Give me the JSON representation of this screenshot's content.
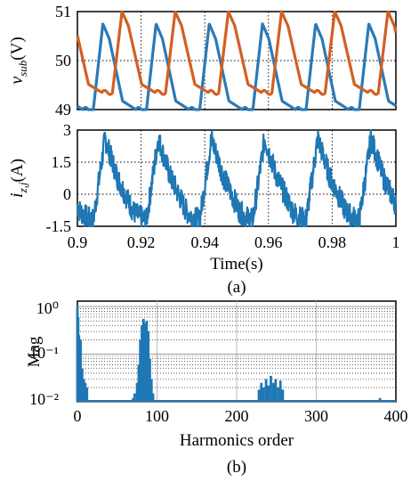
{
  "chart_data": [
    {
      "type": "line",
      "panel": "top",
      "ylabel_main": "v",
      "ylabel_sub": "sub",
      "ylabel_unit": "(V)",
      "xlim": [
        0.9,
        1.0
      ],
      "ylim": [
        49,
        51
      ],
      "yticks": [
        "51",
        "50",
        "49"
      ],
      "grid": true,
      "series": [
        {
          "color": "#2a7ab8",
          "period": 0.0167,
          "phase": 0.905,
          "min": 49,
          "max": 50.75
        },
        {
          "color": "#d35f22",
          "period": 0.0167,
          "phase": 0.911,
          "min": 49.35,
          "max": 51
        }
      ]
    },
    {
      "type": "line",
      "panel": "middle",
      "ylabel_main": "i",
      "ylabel_sub": "z,j",
      "ylabel_unit": "(A)",
      "xlim": [
        0.9,
        1.0
      ],
      "ylim": [
        -1.5,
        3
      ],
      "yticks": [
        "3",
        "1.5",
        "0",
        "-1.5"
      ],
      "xticks": [
        "0.9",
        "0.92",
        "0.94",
        "0.96",
        "0.98",
        "1"
      ],
      "xlabel": "Time(s)",
      "grid": true,
      "series": [
        {
          "color": "#1f77b4",
          "period": 0.0167,
          "min": -1.5,
          "max": 2.7
        }
      ]
    },
    {
      "type": "bar",
      "panel": "bottom",
      "xlabel": "Harmonics order",
      "ylabel": "Mag",
      "xlim": [
        0,
        400
      ],
      "xticks": [
        "0",
        "100",
        "200",
        "300",
        "400"
      ],
      "yscale": "log",
      "ylim": [
        0.01,
        1.3
      ],
      "yticks": [
        "10⁰",
        "10⁻¹",
        "10⁻²"
      ],
      "grid": true,
      "color": "#1f77b4",
      "bars": [
        {
          "x": 0,
          "y": 1.0
        },
        {
          "x": 1,
          "y": 0.6
        },
        {
          "x": 2,
          "y": 0.25
        },
        {
          "x": 3,
          "y": 0.12
        },
        {
          "x": 4,
          "y": 0.2
        },
        {
          "x": 5,
          "y": 0.035
        },
        {
          "x": 6,
          "y": 0.05
        },
        {
          "x": 7,
          "y": 0.018
        },
        {
          "x": 8,
          "y": 0.03
        },
        {
          "x": 9,
          "y": 0.015
        },
        {
          "x": 10,
          "y": 0.025
        },
        {
          "x": 11,
          "y": 0.012
        },
        {
          "x": 12,
          "y": 0.02
        },
        {
          "x": 70,
          "y": 0.012
        },
        {
          "x": 72,
          "y": 0.015
        },
        {
          "x": 75,
          "y": 0.025
        },
        {
          "x": 77,
          "y": 0.06
        },
        {
          "x": 79,
          "y": 0.2
        },
        {
          "x": 81,
          "y": 0.4
        },
        {
          "x": 83,
          "y": 0.55
        },
        {
          "x": 85,
          "y": 0.45
        },
        {
          "x": 87,
          "y": 0.5
        },
        {
          "x": 89,
          "y": 0.3
        },
        {
          "x": 91,
          "y": 0.08
        },
        {
          "x": 93,
          "y": 0.03
        },
        {
          "x": 95,
          "y": 0.015
        },
        {
          "x": 228,
          "y": 0.018
        },
        {
          "x": 231,
          "y": 0.025
        },
        {
          "x": 234,
          "y": 0.02
        },
        {
          "x": 237,
          "y": 0.03
        },
        {
          "x": 240,
          "y": 0.022
        },
        {
          "x": 243,
          "y": 0.035
        },
        {
          "x": 246,
          "y": 0.025
        },
        {
          "x": 249,
          "y": 0.03
        },
        {
          "x": 252,
          "y": 0.02
        },
        {
          "x": 255,
          "y": 0.028
        },
        {
          "x": 258,
          "y": 0.018
        },
        {
          "x": 380,
          "y": 0.012
        }
      ]
    }
  ],
  "captions": {
    "a": "(a)",
    "b": "(b)"
  }
}
